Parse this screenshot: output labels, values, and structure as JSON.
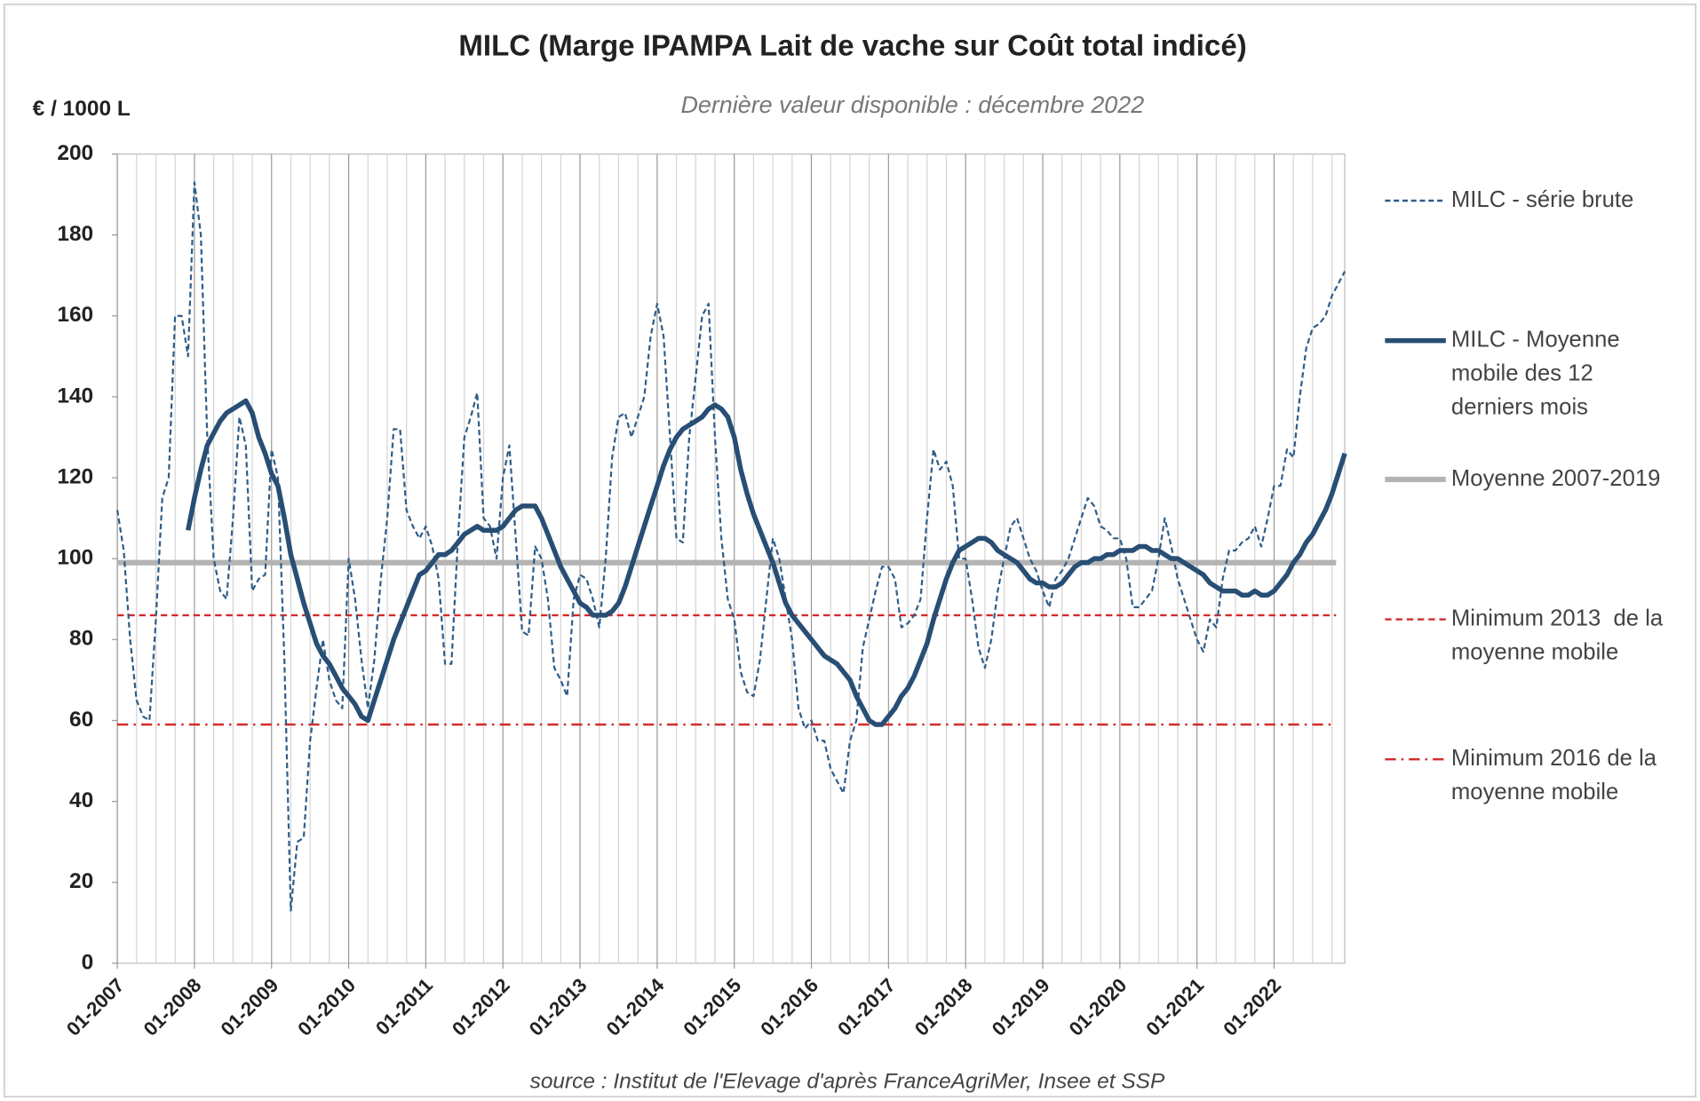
{
  "chart_data": {
    "type": "line",
    "title": "MILC (Marge IPAMPA Lait de vache sur Coût total indicé)",
    "subtitle": "Dernière valeur disponible : décembre 2022",
    "y_label": "€ / 1000 L",
    "source": "source : Institut de l'Elevage d'après FranceAgriMer, Insee et SSP",
    "ylim": [
      0,
      200
    ],
    "yticks": [
      0,
      20,
      40,
      60,
      80,
      100,
      120,
      140,
      160,
      180,
      200
    ],
    "grid": "x",
    "legend": "right",
    "categories": [
      "01-2007",
      null,
      null,
      null,
      null,
      null,
      null,
      null,
      null,
      null,
      null,
      null,
      "01-2008",
      null,
      null,
      null,
      null,
      null,
      null,
      null,
      null,
      null,
      null,
      null,
      "01-2009",
      null,
      null,
      null,
      null,
      null,
      null,
      null,
      null,
      null,
      null,
      null,
      "01-2010",
      null,
      null,
      null,
      null,
      null,
      null,
      null,
      null,
      null,
      null,
      null,
      "01-2011",
      null,
      null,
      null,
      null,
      null,
      null,
      null,
      null,
      null,
      null,
      null,
      "01-2012",
      null,
      null,
      null,
      null,
      null,
      null,
      null,
      null,
      null,
      null,
      null,
      "01-2013",
      null,
      null,
      null,
      null,
      null,
      null,
      null,
      null,
      null,
      null,
      null,
      "01-2014",
      null,
      null,
      null,
      null,
      null,
      null,
      null,
      null,
      null,
      null,
      null,
      "01-2015",
      null,
      null,
      null,
      null,
      null,
      null,
      null,
      null,
      null,
      null,
      null,
      "01-2016",
      null,
      null,
      null,
      null,
      null,
      null,
      null,
      null,
      null,
      null,
      null,
      "01-2017",
      null,
      null,
      null,
      null,
      null,
      null,
      null,
      null,
      null,
      null,
      null,
      "01-2018",
      null,
      null,
      null,
      null,
      null,
      null,
      null,
      null,
      null,
      null,
      null,
      "01-2019",
      null,
      null,
      null,
      null,
      null,
      null,
      null,
      null,
      null,
      null,
      null,
      "01-2020",
      null,
      null,
      null,
      null,
      null,
      null,
      null,
      null,
      null,
      null,
      null,
      "01-2021",
      null,
      null,
      null,
      null,
      null,
      null,
      null,
      null,
      null,
      null,
      null,
      "01-2022",
      null,
      null,
      null,
      null,
      null,
      null,
      null,
      null,
      null,
      null,
      null
    ],
    "series": [
      {
        "name": "MILC - série brute",
        "color": "#2e5d8a",
        "dash": "dashed",
        "values": [
          112,
          102,
          80,
          65,
          61,
          60,
          85,
          115,
          120,
          160,
          160,
          150,
          193,
          180,
          130,
          100,
          92,
          90,
          110,
          135,
          128,
          92,
          95,
          96,
          127,
          120,
          75,
          13,
          30,
          31,
          55,
          68,
          80,
          70,
          65,
          63,
          100,
          90,
          75,
          63,
          75,
          95,
          110,
          132,
          132,
          112,
          108,
          105,
          108,
          103,
          95,
          74,
          74,
          105,
          130,
          135,
          141,
          110,
          108,
          100,
          120,
          128,
          105,
          82,
          81,
          103,
          100,
          90,
          73,
          70,
          66,
          90,
          96,
          95,
          90,
          83,
          100,
          125,
          135,
          136,
          130,
          135,
          140,
          155,
          163,
          155,
          130,
          105,
          104,
          130,
          145,
          160,
          163,
          130,
          105,
          90,
          85,
          72,
          67,
          66,
          75,
          90,
          105,
          100,
          90,
          80,
          63,
          58,
          60,
          55,
          55,
          48,
          45,
          42,
          55,
          60,
          78,
          85,
          92,
          98,
          98,
          95,
          83,
          84,
          86,
          90,
          110,
          127,
          122,
          124,
          118,
          100,
          100,
          90,
          78,
          73,
          80,
          92,
          100,
          108,
          110,
          105,
          100,
          97,
          92,
          88,
          95,
          97,
          100,
          105,
          110,
          115,
          113,
          108,
          107,
          105,
          105,
          100,
          88,
          88,
          90,
          92,
          100,
          110,
          103,
          95,
          90,
          85,
          80,
          77,
          85,
          83,
          95,
          102,
          102,
          104,
          105,
          108,
          103,
          110,
          118,
          118,
          127,
          125,
          140,
          152,
          157,
          158,
          160,
          165,
          168,
          171
        ]
      },
      {
        "name": "MILC - Moyenne mobile des 12 derniers mois",
        "color": "#284e74",
        "dash": "solid",
        "values": [
          null,
          null,
          null,
          null,
          null,
          null,
          null,
          null,
          null,
          null,
          null,
          107,
          115,
          122,
          128,
          131,
          134,
          136,
          137,
          138,
          139,
          136,
          130,
          126,
          121,
          118,
          110,
          101,
          95,
          89,
          84,
          79,
          76,
          74,
          71,
          68,
          66,
          64,
          61,
          60,
          65,
          70,
          75,
          80,
          84,
          88,
          92,
          96,
          97,
          99,
          101,
          101,
          102,
          104,
          106,
          107,
          108,
          107,
          107,
          107,
          108,
          110,
          112,
          113,
          113,
          113,
          110,
          106,
          102,
          98,
          95,
          92,
          89,
          88,
          86,
          86,
          86,
          87,
          89,
          93,
          98,
          103,
          108,
          113,
          118,
          123,
          127,
          130,
          132,
          133,
          134,
          135,
          137,
          138,
          137,
          135,
          130,
          122,
          116,
          111,
          107,
          103,
          99,
          94,
          89,
          86,
          84,
          82,
          80,
          78,
          76,
          75,
          74,
          72,
          70,
          66,
          63,
          60,
          59,
          59,
          61,
          63,
          66,
          68,
          71,
          75,
          79,
          85,
          90,
          95,
          99,
          102,
          103,
          104,
          105,
          105,
          104,
          102,
          101,
          100,
          99,
          97,
          95,
          94,
          94,
          93,
          93,
          94,
          96,
          98,
          99,
          99,
          100,
          100,
          101,
          101,
          102,
          102,
          102,
          103,
          103,
          102,
          102,
          101,
          100,
          100,
          99,
          98,
          97,
          96,
          94,
          93,
          92,
          92,
          92,
          91,
          91,
          92,
          91,
          91,
          92,
          94,
          96,
          99,
          101,
          104,
          106,
          109,
          112,
          116,
          121,
          126
        ]
      }
    ],
    "reference_lines": [
      {
        "name": "Moyenne 2007-2019",
        "color": "#b3b3b3",
        "dash": "solid",
        "value": 99
      },
      {
        "name": "Minimum 2013  de la moyenne mobile",
        "color": "#d42a2a",
        "dash": "dashed",
        "value": 86
      },
      {
        "name": "Minimum 2016 de la moyenne mobile",
        "color": "#d42a2a",
        "dash": "dashdot",
        "value": 59
      }
    ]
  }
}
